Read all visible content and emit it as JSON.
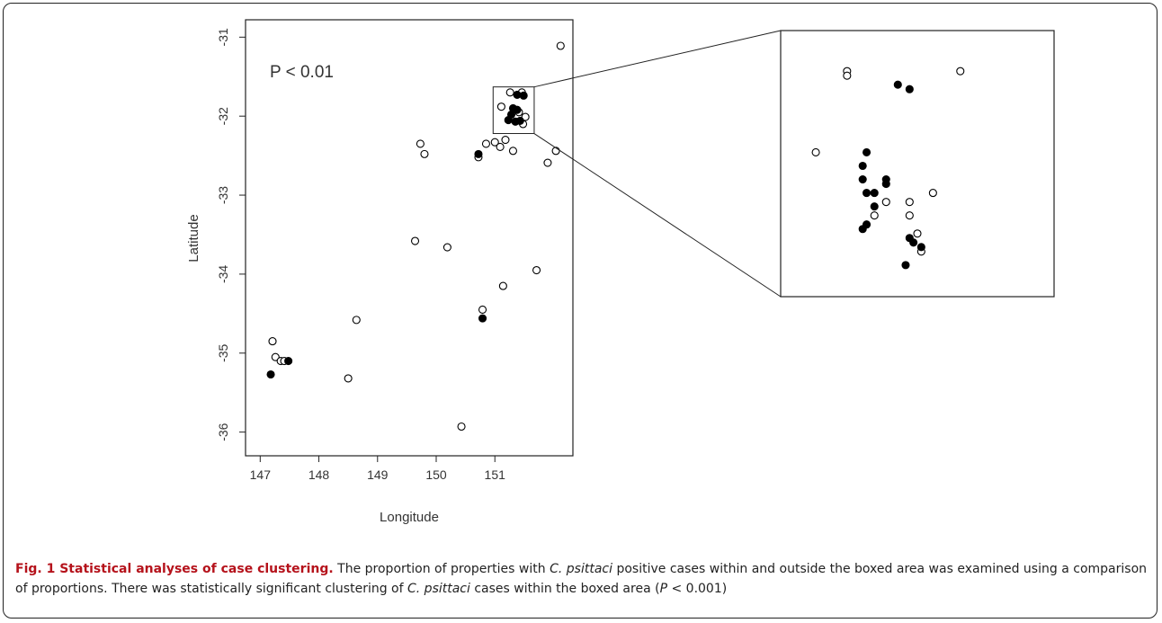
{
  "chart_data": [
    {
      "type": "scatter",
      "xlabel": "Longitude",
      "ylabel": "Latitude",
      "annotation": "P < 0.01",
      "xlim": [
        146.75,
        152.33
      ],
      "ylim": [
        -36.3,
        -30.78
      ],
      "xticks": [
        147,
        148,
        149,
        150,
        151
      ],
      "yticks": [
        -31,
        -32,
        -33,
        -34,
        -35,
        -36
      ],
      "series": [
        {
          "color": "#000000",
          "filled": false,
          "x": [
            152.12,
            151.26,
            151.46,
            151.11,
            151.41,
            151.52,
            151.48,
            149.73,
            149.8,
            150.85,
            151.0,
            151.09,
            151.18,
            151.31,
            150.72,
            151.9,
            152.04,
            149.64,
            150.19,
            151.14,
            151.71,
            150.79,
            147.21,
            147.26,
            147.35,
            147.41,
            148.64,
            148.5,
            150.43
          ],
          "values": [
            -31.11,
            -31.7,
            -31.7,
            -31.88,
            -31.95,
            -32.01,
            -32.1,
            -32.35,
            -32.48,
            -32.35,
            -32.33,
            -32.39,
            -32.3,
            -32.44,
            -32.52,
            -32.59,
            -32.44,
            -33.58,
            -33.66,
            -34.15,
            -33.95,
            -34.45,
            -34.85,
            -35.05,
            -35.1,
            -35.1,
            -34.58,
            -35.32,
            -35.93
          ]
        },
        {
          "color": "#000000",
          "filled": true,
          "x": [
            151.38,
            151.31,
            151.28,
            151.38,
            151.23,
            151.35,
            151.43,
            150.72,
            150.79,
            147.18,
            147.48,
            151.49
          ],
          "values": [
            -31.73,
            -31.9,
            -31.98,
            -31.92,
            -32.05,
            -32.07,
            -32.06,
            -32.48,
            -34.56,
            -35.27,
            -35.1,
            -31.74
          ]
        }
      ]
    },
    {
      "type": "scatter",
      "xlim": [
        150.97,
        151.67
      ],
      "ylim": [
        -32.22,
        -31.63
      ],
      "series": [
        {
          "color": "#000000",
          "filled": false,
          "x": [
            151.14,
            151.14,
            151.43,
            151.06,
            151.36,
            151.24,
            151.3,
            151.21,
            151.3,
            151.32,
            151.33
          ],
          "values": [
            -31.72,
            -31.73,
            -31.72,
            -31.9,
            -31.99,
            -32.01,
            -32.01,
            -32.04,
            -32.04,
            -32.08,
            -32.12
          ]
        },
        {
          "color": "#000000",
          "filled": true,
          "x": [
            151.27,
            151.3,
            151.19,
            151.18,
            151.18,
            151.19,
            151.21,
            151.24,
            151.24,
            151.21,
            151.3,
            151.31,
            151.19,
            151.18,
            151.29,
            151.33
          ],
          "values": [
            -31.75,
            -31.76,
            -31.9,
            -31.93,
            -31.96,
            -31.99,
            -31.99,
            -31.96,
            -31.97,
            -32.02,
            -32.09,
            -32.1,
            -32.06,
            -32.07,
            -32.15,
            -32.11
          ]
        }
      ]
    }
  ],
  "caption": {
    "label": "Fig. 1 Statistical analyses of case clustering.",
    "text": [
      "The proportion of properties with ",
      "C. psittaci",
      " positive cases within and outside the boxed area was examined using a comparison of proportions. There was statistically significant clustering of ",
      "C. psittaci",
      " cases within the boxed area (",
      "P",
      " < 0.001)"
    ]
  }
}
